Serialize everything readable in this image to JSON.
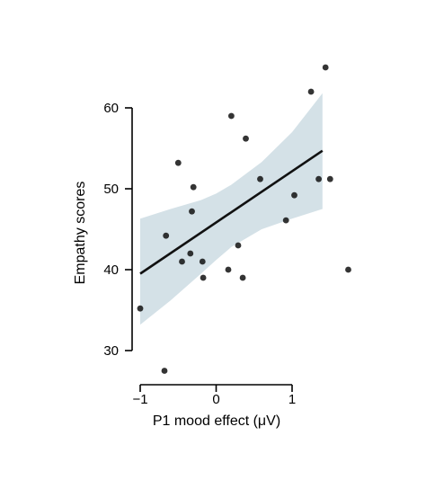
{
  "chart_data": {
    "type": "scatter",
    "title": "",
    "xlabel": "P1 mood effect (μV)",
    "ylabel": "Empathy scores",
    "xlim": [
      -1,
      1.4
    ],
    "ylim": [
      30,
      65
    ],
    "xticks": [
      -1,
      0,
      1
    ],
    "xtick_labels": [
      "−1",
      "0",
      "1"
    ],
    "yticks": [
      30,
      40,
      50,
      60
    ],
    "ytick_labels": [
      "30",
      "40",
      "50",
      "60"
    ],
    "grid": false,
    "legend": "none",
    "points": {
      "x": [
        -1.0,
        -0.68,
        -0.66,
        -0.5,
        -0.45,
        -0.34,
        -0.32,
        -0.3,
        -0.18,
        -0.17,
        0.16,
        0.2,
        0.29,
        0.35,
        0.39,
        0.58,
        0.92,
        1.03,
        1.25,
        1.35,
        1.44,
        1.5,
        1.74
      ],
      "y": [
        35.2,
        27.5,
        44.2,
        53.2,
        41.0,
        42.0,
        47.2,
        50.2,
        41.0,
        39.0,
        40.0,
        59.0,
        43.0,
        39.0,
        56.2,
        51.2,
        46.1,
        49.2,
        62.0,
        51.2,
        65.0,
        51.2,
        40.0
      ]
    },
    "regression": {
      "x": [
        -1.0,
        1.4
      ],
      "y": [
        39.5,
        54.7
      ]
    },
    "confidence_band": {
      "x": [
        -1.0,
        -0.6,
        -0.2,
        0.0,
        0.2,
        0.6,
        1.0,
        1.4
      ],
      "upper": [
        46.3,
        47.5,
        48.6,
        49.4,
        50.5,
        53.3,
        57.0,
        61.8
      ],
      "lower": [
        33.2,
        36.2,
        39.5,
        41.2,
        42.8,
        45.0,
        46.3,
        47.5
      ]
    },
    "colors": {
      "points": "#111111",
      "line": "#111111",
      "band": "#d4e1e7",
      "axis": "#000000"
    }
  }
}
